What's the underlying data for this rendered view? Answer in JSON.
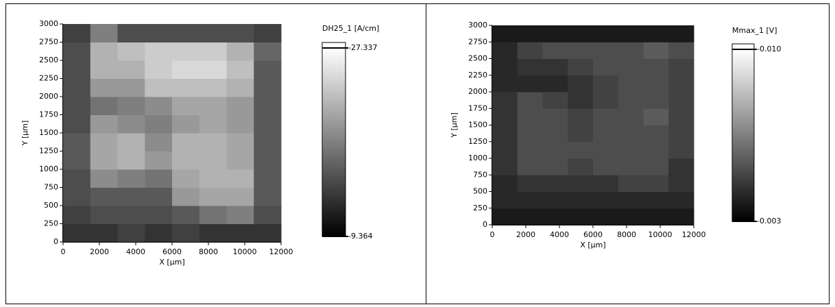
{
  "chart_data": [
    {
      "type": "heatmap",
      "xlabel": "X [µm]",
      "ylabel": "Y [µm]",
      "colorbar_label": "DH25_1 [A/cm]",
      "xlim": [
        0,
        12000
      ],
      "ylim": [
        0,
        3000
      ],
      "xticks": [
        0,
        2000,
        4000,
        6000,
        8000,
        10000,
        12000
      ],
      "yticks": [
        0,
        250,
        500,
        750,
        1000,
        1250,
        1500,
        1750,
        2000,
        2250,
        2500,
        2750,
        3000
      ],
      "zlim": [
        -9.364,
        -27.337
      ],
      "zticks": [
        -27.337,
        -9.364
      ],
      "z": [
        [
          -12.96,
          -12.96,
          -13.86,
          -12.96,
          -13.86,
          -12.96,
          -12.96,
          -12.96
        ],
        [
          -13.86,
          -14.76,
          -14.76,
          -14.76,
          -15.65,
          -17.45,
          -18.35,
          -14.76
        ],
        [
          -14.76,
          -15.65,
          -15.65,
          -15.65,
          -20.15,
          -21.05,
          -21.05,
          -15.65
        ],
        [
          -14.76,
          -19.25,
          -18.35,
          -17.45,
          -21.05,
          -21.94,
          -21.94,
          -15.65
        ],
        [
          -15.65,
          -21.05,
          -21.94,
          -20.15,
          -21.94,
          -21.94,
          -21.05,
          -15.65
        ],
        [
          -15.65,
          -21.05,
          -21.94,
          -19.25,
          -21.94,
          -21.94,
          -21.05,
          -15.65
        ],
        [
          -14.76,
          -20.15,
          -19.25,
          -18.35,
          -20.15,
          -21.05,
          -20.15,
          -15.65
        ],
        [
          -14.76,
          -17.45,
          -18.35,
          -19.25,
          -21.05,
          -21.05,
          -20.15,
          -15.65
        ],
        [
          -14.76,
          -20.15,
          -20.15,
          -22.84,
          -22.84,
          -22.84,
          -21.94,
          -15.65
        ],
        [
          -14.76,
          -21.94,
          -21.94,
          -23.74,
          -24.64,
          -24.64,
          -22.84,
          -15.65
        ],
        [
          -14.76,
          -21.94,
          -22.84,
          -23.74,
          -23.74,
          -23.74,
          -21.94,
          -16.55
        ],
        [
          -13.86,
          -18.35,
          -14.76,
          -14.76,
          -14.76,
          -14.76,
          -14.76,
          -13.86
        ]
      ]
    },
    {
      "type": "heatmap",
      "xlabel": "X [µm]",
      "ylabel": "Y [µm]",
      "colorbar_label": "Mmax_1 [V]",
      "xlim": [
        0,
        12000
      ],
      "ylim": [
        0,
        3000
      ],
      "xticks": [
        0,
        2000,
        4000,
        6000,
        8000,
        10000,
        12000
      ],
      "yticks": [
        0,
        250,
        500,
        750,
        1000,
        1250,
        1500,
        1750,
        2000,
        2250,
        2500,
        2750,
        3000
      ],
      "zlim": [
        -0.003,
        -0.01
      ],
      "zticks": [
        {
          "value": -0.01,
          "label": "-0.010"
        },
        -0.003
      ],
      "z": [
        [
          -0.0037,
          -0.0037,
          -0.0037,
          -0.0037,
          -0.0037,
          -0.0037,
          -0.0037,
          -0.0037
        ],
        [
          -0.0041,
          -0.0041,
          -0.0041,
          -0.0041,
          -0.0041,
          -0.0041,
          -0.0041,
          -0.0041
        ],
        [
          -0.0041,
          -0.0044,
          -0.0044,
          -0.0044,
          -0.0044,
          -0.0048,
          -0.0048,
          -0.0044
        ],
        [
          -0.0044,
          -0.0051,
          -0.0051,
          -0.0048,
          -0.0051,
          -0.0051,
          -0.0051,
          -0.0044
        ],
        [
          -0.0044,
          -0.0051,
          -0.0051,
          -0.0051,
          -0.0051,
          -0.0051,
          -0.0051,
          -0.0048
        ],
        [
          -0.0044,
          -0.0051,
          -0.0051,
          -0.0048,
          -0.0051,
          -0.0051,
          -0.0051,
          -0.0048
        ],
        [
          -0.0044,
          -0.0051,
          -0.0051,
          -0.0048,
          -0.0051,
          -0.0051,
          -0.0055,
          -0.0048
        ],
        [
          -0.0044,
          -0.0051,
          -0.0048,
          -0.0044,
          -0.0048,
          -0.0051,
          -0.0051,
          -0.0048
        ],
        [
          -0.0041,
          -0.0041,
          -0.0041,
          -0.0044,
          -0.0048,
          -0.0051,
          -0.0051,
          -0.0048
        ],
        [
          -0.0041,
          -0.0044,
          -0.0044,
          -0.0048,
          -0.0051,
          -0.0051,
          -0.0051,
          -0.0048
        ],
        [
          -0.0041,
          -0.0048,
          -0.0051,
          -0.0051,
          -0.0051,
          -0.0051,
          -0.0055,
          -0.0051
        ],
        [
          -0.0037,
          -0.0037,
          -0.0037,
          -0.0037,
          -0.0037,
          -0.0037,
          -0.0037,
          -0.0037
        ]
      ]
    }
  ]
}
